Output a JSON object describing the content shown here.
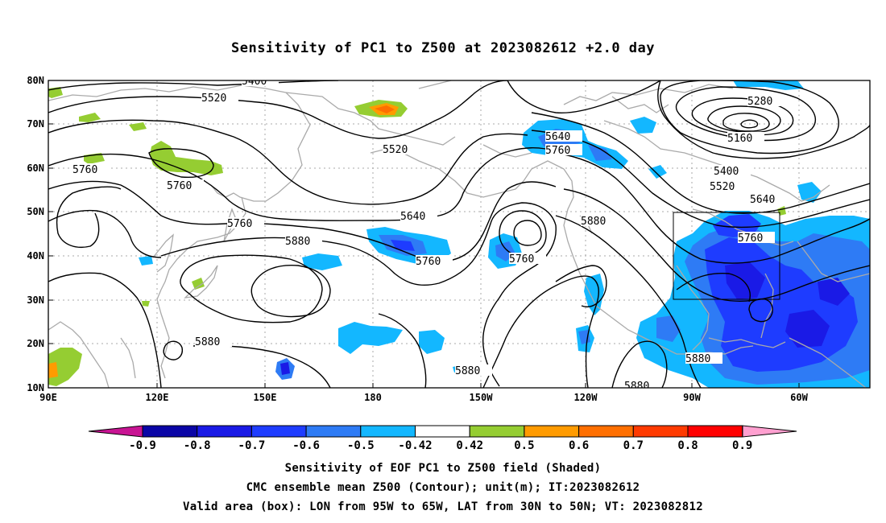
{
  "title": "Sensitivity of PC1 to Z500 at 2023082612 +2.0 day",
  "lat_labels": [
    "80N",
    "70N",
    "60N",
    "50N",
    "40N",
    "30N",
    "20N",
    "10N"
  ],
  "lon_labels": [
    "90E",
    "120E",
    "150E",
    "180",
    "150W",
    "120W",
    "90W",
    "60W"
  ],
  "colorbar": {
    "labels": [
      "-0.9",
      "-0.8",
      "-0.7",
      "-0.6",
      "-0.5",
      "-0.42",
      "0.42",
      "0.5",
      "0.6",
      "0.7",
      "0.8",
      "0.9"
    ],
    "colors": [
      "#0a05a6",
      "#1a1ae6",
      "#1e3cff",
      "#2e7bf5",
      "#13b7ff",
      "#ffffff",
      "#95cd32",
      "#ff9b00",
      "#ff6f00",
      "#ff3a00",
      "#ff0000"
    ],
    "under_color": "#c81493",
    "over_color": "#ffa0d0"
  },
  "contour_labels": {
    "c5400a": "5400",
    "c5520a": "5520",
    "c5280": "5280",
    "c5160": "5160",
    "c5760a": "5760",
    "c5760b": "5760",
    "c5520b": "5520",
    "c5640a": "5640",
    "c5760c": "5760",
    "c5400b": "5400",
    "c5520c": "5520",
    "c5640b": "5640",
    "c5760d": "5760",
    "c5640c": "5640",
    "c5880a": "5880",
    "c5760e": "5760",
    "c5760f": "5760",
    "c5880b": "5880",
    "c5760g": "5760",
    "c5880c": "5880",
    "c5880d": "5880",
    "c5880e": "5880",
    "c5880f": "5880"
  },
  "captions": {
    "line1": "Sensitivity of EOF PC1 to Z500 field (Shaded)",
    "line2": "CMC ensemble mean Z500 (Contour); unit(m); IT:2023082612",
    "line3": "Valid area (box): LON from 95W to 65W, LAT from 30N to 50N; VT: 2023082812"
  }
}
